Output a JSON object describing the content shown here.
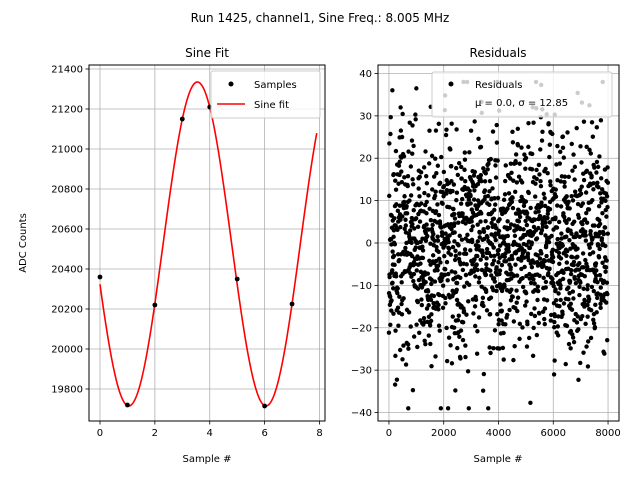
{
  "suptitle": "Run 1425, channel1, Sine Freq.: 8.005 MHz",
  "chart_data": [
    {
      "type": "line",
      "title": "Sine Fit",
      "xlabel": "Sample #",
      "ylabel": "ADC Counts",
      "xlim": [
        -0.4,
        8.2
      ],
      "ylim": [
        19640,
        21420
      ],
      "xticks": [
        0,
        2,
        4,
        6,
        8
      ],
      "xtick_labels": [
        "0",
        "2",
        "4",
        "6",
        "8"
      ],
      "yticks": [
        19800,
        20000,
        20200,
        20400,
        20600,
        20800,
        21000,
        21200,
        21400
      ],
      "ytick_labels": [
        "19800",
        "20000",
        "20200",
        "20400",
        "20600",
        "20800",
        "21000",
        "21200",
        "21400"
      ],
      "grid": true,
      "legend_position": "upper right",
      "series": [
        {
          "name": "Samples",
          "kind": "scatter",
          "color": "#000000",
          "x": [
            0,
            1,
            2,
            3,
            4,
            5,
            6,
            7
          ],
          "y": [
            20360,
            19720,
            20220,
            21150,
            21210,
            20350,
            19715,
            20225
          ]
        },
        {
          "name": "Sine fit",
          "kind": "line",
          "color": "#ff0000",
          "function": "sine",
          "x_range": [
            0,
            7.9
          ],
          "offset": 20525,
          "amplitude": 810,
          "period": 5,
          "phase_peak_x": 3.55
        }
      ]
    },
    {
      "type": "scatter",
      "title": "Residuals",
      "xlabel": "Sample #",
      "ylabel": "",
      "xlim": [
        -400,
        8400
      ],
      "ylim": [
        -42,
        42
      ],
      "xticks": [
        0,
        2000,
        4000,
        6000,
        8000
      ],
      "xtick_labels": [
        "0",
        "2000",
        "4000",
        "6000",
        "8000"
      ],
      "yticks": [
        -40,
        -30,
        -20,
        -10,
        0,
        10,
        20,
        30,
        40
      ],
      "ytick_labels": [
        "−40",
        "−30",
        "−20",
        "−10",
        "0",
        "10",
        "20",
        "30",
        "40"
      ],
      "grid": true,
      "legend_position": "upper right",
      "legend_label": "Residuals",
      "legend_stats": "μ = 0.0, σ = 12.85",
      "color": "#000000",
      "mean": 0.0,
      "std": 12.85,
      "sample_count": 8000,
      "min": -39,
      "max": 38
    }
  ]
}
